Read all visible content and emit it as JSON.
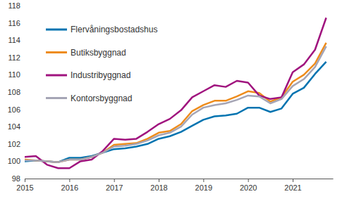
{
  "chart_data": {
    "type": "line",
    "x": [
      2015,
      2015.25,
      2015.5,
      2015.75,
      2016,
      2016.25,
      2016.5,
      2016.75,
      2017,
      2017.25,
      2017.5,
      2017.75,
      2018,
      2018.25,
      2018.5,
      2018.75,
      2019,
      2019.25,
      2019.5,
      2019.75,
      2020,
      2020.25,
      2020.5,
      2020.75,
      2021,
      2021.25,
      2021.5,
      2021.75
    ],
    "series": [
      {
        "name": "Flervåningsbostadshus",
        "color": "#0073b0",
        "values": [
          100,
          100.1,
          100,
          99.9,
          100.4,
          100.4,
          100.6,
          101,
          101.4,
          101.5,
          101.7,
          102,
          102.6,
          102.9,
          103.4,
          104.1,
          104.8,
          105.2,
          105.3,
          105.5,
          106.2,
          106.2,
          105.7,
          106.1,
          107.8,
          108.5,
          110.1,
          111.5
        ]
      },
      {
        "name": "Butiksbyggnad",
        "color": "#ee8c1c",
        "values": [
          100.2,
          100.1,
          100,
          99.9,
          100.2,
          100.2,
          100.5,
          101,
          101.9,
          102,
          102.1,
          102.6,
          103.3,
          103.5,
          104.3,
          105.8,
          106.5,
          107,
          107,
          107.5,
          108.1,
          107.9,
          106.9,
          107.4,
          109.2,
          110,
          111.3,
          113.7
        ]
      },
      {
        "name": "Industribyggnad",
        "color": "#a0137e",
        "values": [
          100.5,
          100.6,
          99.6,
          99.2,
          99.2,
          100,
          100.2,
          101.2,
          102.6,
          102.5,
          102.6,
          103.4,
          104.3,
          104.9,
          105.9,
          107.4,
          108.1,
          108.8,
          108.6,
          109.3,
          109.1,
          107.6,
          107.2,
          107.4,
          110.3,
          111.2,
          112.9,
          116.6
        ]
      },
      {
        "name": "Kontorsbyggnad",
        "color": "#a5a5b5",
        "values": [
          100.1,
          100.1,
          100,
          99.9,
          100.2,
          100.2,
          100.5,
          101,
          101.7,
          101.8,
          102,
          102.4,
          103,
          103.3,
          104,
          105.4,
          106.2,
          106.5,
          106.7,
          107.1,
          107.6,
          107.5,
          106.7,
          107.2,
          108.7,
          109.5,
          110.9,
          113.3
        ]
      }
    ],
    "xlim": [
      2015,
      2021.9
    ],
    "xticks": [
      2015,
      2016,
      2017,
      2018,
      2019,
      2020,
      2021
    ],
    "ylim": [
      98,
      118
    ],
    "yticks": [
      98,
      100,
      102,
      104,
      106,
      108,
      110,
      112,
      114,
      116,
      118
    ],
    "grid": false,
    "legend": "upper left"
  }
}
